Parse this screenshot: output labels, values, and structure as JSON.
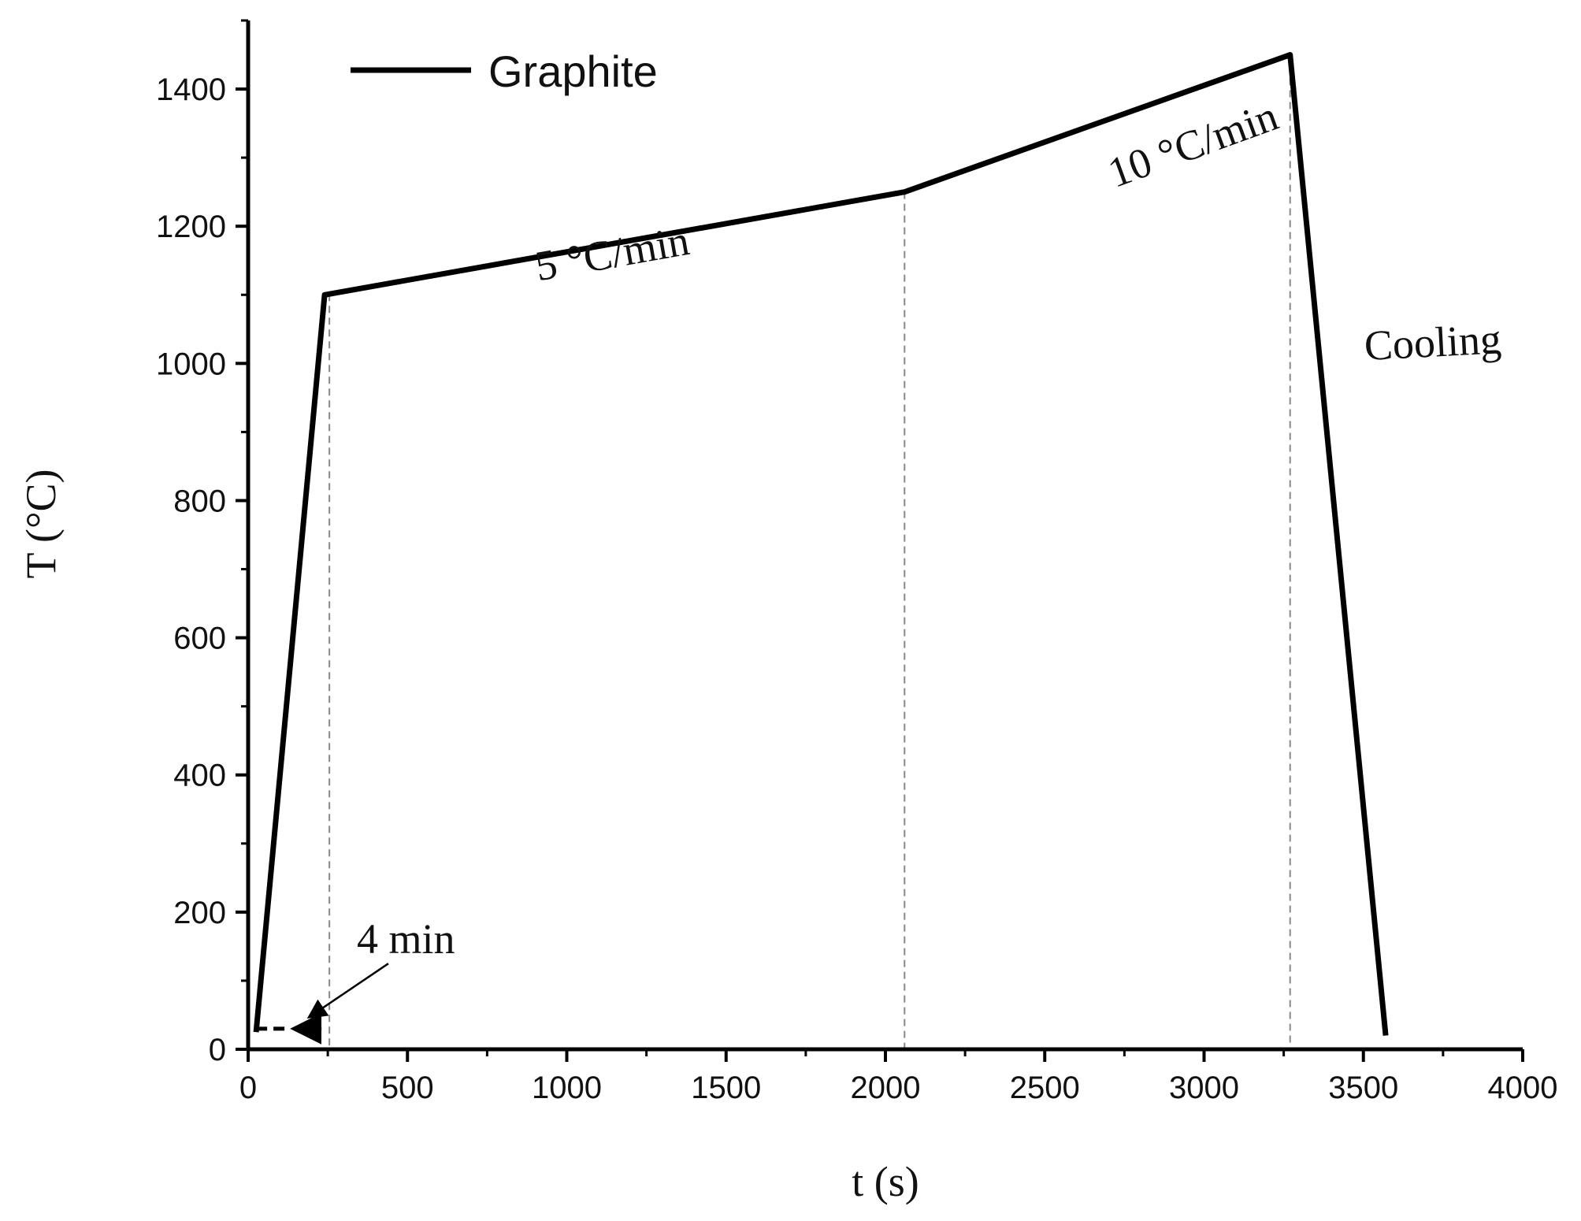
{
  "chart_data": {
    "type": "line",
    "xlabel": "t (s)",
    "ylabel": "T (°C)",
    "xlim": [
      0,
      4000
    ],
    "ylim": [
      0,
      1500
    ],
    "x_ticks": [
      0,
      500,
      1000,
      1500,
      2000,
      2500,
      3000,
      3500,
      4000
    ],
    "y_ticks": [
      0,
      200,
      400,
      600,
      800,
      1000,
      1200,
      1400
    ],
    "grid": false,
    "legend_position": "top-left",
    "series": [
      {
        "name": "Graphite",
        "color": "#000000",
        "x": [
          25,
          240,
          2060,
          3270,
          3570
        ],
        "y": [
          25,
          1100,
          1250,
          1450,
          20
        ]
      }
    ],
    "reference_lines_x": [
      255,
      2060,
      3270
    ],
    "annotations": [
      {
        "text": "5 °C/min",
        "x": 1150,
        "y": 1140,
        "rotate": -10
      },
      {
        "text": "10 °C/min",
        "x": 2980,
        "y": 1300,
        "rotate": -20
      },
      {
        "text": "Cooling",
        "x": 3720,
        "y": 1010,
        "rotate": -3
      },
      {
        "text": "4 min",
        "x": 495,
        "y": 140,
        "rotate": 0
      }
    ],
    "span_arrow": {
      "x_from": 25,
      "x_to": 255,
      "y": 30,
      "label": "4 min"
    }
  }
}
